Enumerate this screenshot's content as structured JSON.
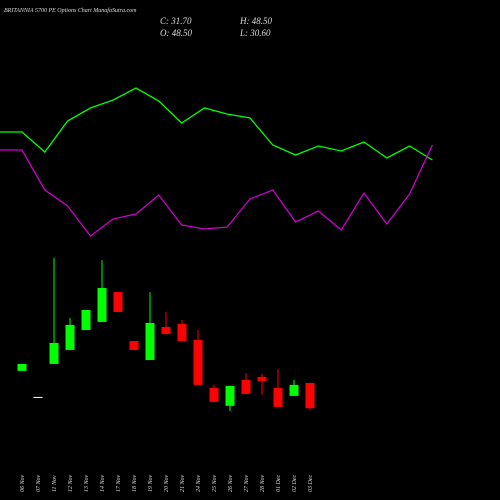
{
  "chart_data": {
    "type": "candlestick",
    "title": "BRITANNIA 5700 PE Options Chart MunafaSutra.com",
    "ohlc_labels": [
      "C: 31.70",
      "H: 48.50",
      "O: 48.50",
      "L: 30.60"
    ],
    "categories": [
      "06 Nov",
      "07 Nov",
      "11 Nov",
      "12 Nov",
      "13 Nov",
      "14 Nov",
      "17 Nov",
      "18 Nov",
      "19 Nov",
      "20 Nov",
      "21 Nov",
      "24 Nov",
      "25 Nov",
      "26 Nov",
      "27 Nov",
      "28 Nov",
      "01 Dec",
      "02 Dec",
      "03 Dec"
    ],
    "open": [
      56.5,
      39.2,
      61.1,
      70.4,
      83.6,
      89.0,
      108.8,
      76.3,
      63.7,
      85.6,
      87.6,
      77.0,
      45.2,
      33.3,
      50.5,
      52.5,
      45.2,
      39.9,
      48.5
    ],
    "high": [
      61.1,
      39.2,
      131.4,
      91.6,
      96.9,
      130.0,
      108.8,
      76.3,
      108.8,
      95.6,
      90.3,
      83.6,
      47.2,
      46.5,
      55.1,
      54.5,
      57.8,
      50.5,
      48.5
    ],
    "low": [
      56.5,
      39.2,
      61.1,
      70.4,
      83.6,
      89.0,
      95.6,
      70.4,
      63.7,
      80.9,
      76.3,
      47.2,
      35.9,
      29.9,
      41.2,
      40.5,
      32.6,
      39.9,
      30.6
    ],
    "close": [
      61.1,
      39.2,
      75.0,
      87.0,
      96.9,
      111.5,
      95.6,
      70.4,
      88.3,
      80.9,
      76.3,
      47.2,
      35.9,
      46.5,
      41.2,
      49.8,
      32.6,
      47.2,
      31.7
    ],
    "ylim": [
      0,
      150
    ],
    "up_color": "#00ff00",
    "down_color": "#ff0000",
    "indicator_ylim": [
      0,
      300
    ],
    "indicators": [
      {
        "color": "#00ff00",
        "values": [
          168,
          148,
          179,
          192,
          200,
          212,
          199,
          177,
          192,
          186,
          182,
          155,
          145,
          154,
          149,
          158,
          142,
          154,
          140
        ]
      },
      {
        "color": "#cc00cc",
        "values": [
          150,
          110,
          94,
          64,
          81,
          86,
          105,
          75,
          71,
          73,
          101,
          110,
          78,
          89,
          70,
          107,
          76,
          106,
          155
        ]
      }
    ]
  }
}
